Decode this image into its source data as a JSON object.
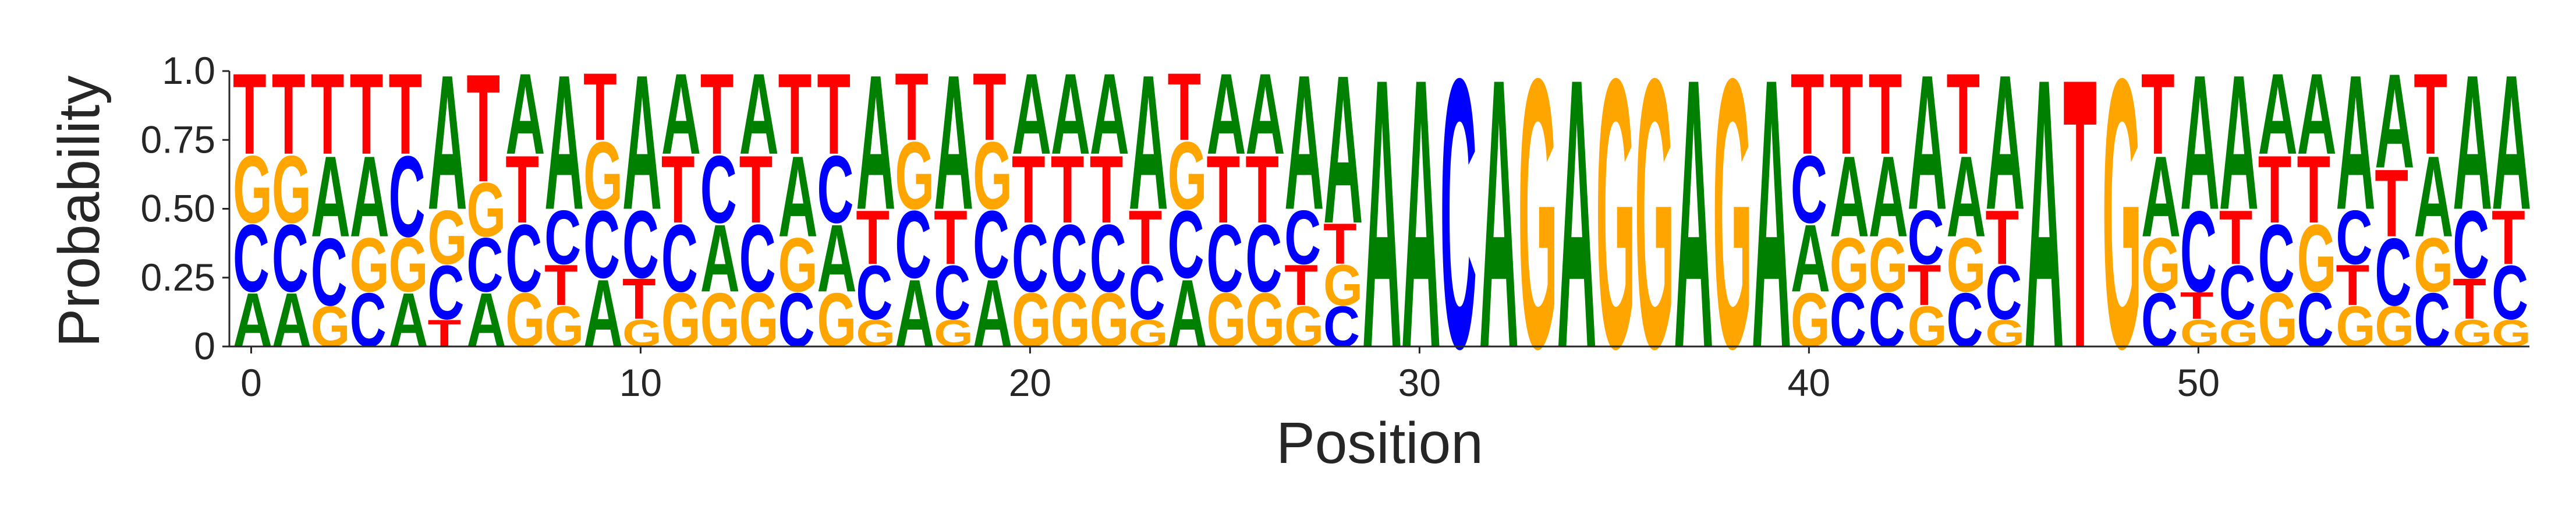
{
  "chart_data": {
    "type": "sequence-logo",
    "xlabel": "Position",
    "ylabel": "Probability",
    "ylim": [
      0,
      1
    ],
    "x_ticks": [
      "0",
      "10",
      "20",
      "30",
      "40",
      "50"
    ],
    "x_tick_values": [
      0,
      10,
      20,
      30,
      40,
      50
    ],
    "y_ticks": [
      "0",
      "0.25",
      "0.50",
      "0.75",
      "1.0"
    ],
    "y_tick_values": [
      0,
      0.25,
      0.5,
      0.75,
      1.0
    ],
    "colors": {
      "A": "#008000",
      "C": "#0000ff",
      "G": "#ffa500",
      "T": "#ff0000"
    },
    "positions": [
      {
        "A": 0.2,
        "C": 0.25,
        "G": 0.25,
        "T": 0.3
      },
      {
        "A": 0.2,
        "C": 0.25,
        "G": 0.25,
        "T": 0.3
      },
      {
        "A": 0.3,
        "C": 0.25,
        "G": 0.15,
        "T": 0.3
      },
      {
        "A": 0.3,
        "C": 0.2,
        "G": 0.2,
        "T": 0.3
      },
      {
        "A": 0.2,
        "C": 0.3,
        "G": 0.2,
        "T": 0.3
      },
      {
        "A": 0.5,
        "C": 0.2,
        "G": 0.2,
        "T": 0.1
      },
      {
        "A": 0.2,
        "C": 0.2,
        "G": 0.2,
        "T": 0.4
      },
      {
        "A": 0.3,
        "C": 0.25,
        "G": 0.2,
        "T": 0.25
      },
      {
        "A": 0.5,
        "C": 0.2,
        "G": 0.15,
        "T": 0.15
      },
      {
        "A": 0.25,
        "C": 0.25,
        "G": 0.25,
        "T": 0.25
      },
      {
        "A": 0.5,
        "C": 0.25,
        "G": 0.1,
        "T": 0.15
      },
      {
        "A": 0.3,
        "C": 0.25,
        "G": 0.2,
        "T": 0.25
      },
      {
        "A": 0.25,
        "C": 0.25,
        "G": 0.2,
        "T": 0.3
      },
      {
        "A": 0.3,
        "C": 0.25,
        "G": 0.2,
        "T": 0.25
      },
      {
        "A": 0.3,
        "C": 0.2,
        "G": 0.2,
        "T": 0.3
      },
      {
        "A": 0.25,
        "C": 0.25,
        "G": 0.2,
        "T": 0.3
      },
      {
        "A": 0.5,
        "C": 0.2,
        "G": 0.1,
        "T": 0.2
      },
      {
        "A": 0.25,
        "C": 0.25,
        "G": 0.25,
        "T": 0.25
      },
      {
        "A": 0.5,
        "C": 0.2,
        "G": 0.1,
        "T": 0.2
      },
      {
        "A": 0.25,
        "C": 0.25,
        "G": 0.25,
        "T": 0.25
      },
      {
        "A": 0.3,
        "C": 0.25,
        "G": 0.2,
        "T": 0.25
      },
      {
        "A": 0.3,
        "C": 0.25,
        "G": 0.2,
        "T": 0.25
      },
      {
        "A": 0.3,
        "C": 0.25,
        "G": 0.2,
        "T": 0.25
      },
      {
        "A": 0.5,
        "C": 0.2,
        "G": 0.1,
        "T": 0.2
      },
      {
        "A": 0.25,
        "C": 0.25,
        "G": 0.25,
        "T": 0.25
      },
      {
        "A": 0.3,
        "C": 0.25,
        "G": 0.2,
        "T": 0.25
      },
      {
        "A": 0.3,
        "C": 0.25,
        "G": 0.2,
        "T": 0.25
      },
      {
        "A": 0.5,
        "C": 0.2,
        "G": 0.15,
        "T": 0.15
      },
      {
        "A": 0.55,
        "C": 0.15,
        "G": 0.15,
        "T": 0.15
      },
      {
        "A": 1.0,
        "C": 0,
        "G": 0,
        "T": 0
      },
      {
        "A": 1.0,
        "C": 0,
        "G": 0,
        "T": 0
      },
      {
        "A": 0,
        "C": 1.0,
        "G": 0,
        "T": 0
      },
      {
        "A": 1.0,
        "C": 0,
        "G": 0,
        "T": 0
      },
      {
        "A": 0,
        "C": 0,
        "G": 1.0,
        "T": 0
      },
      {
        "A": 1.0,
        "C": 0,
        "G": 0,
        "T": 0
      },
      {
        "A": 0,
        "C": 0,
        "G": 1.0,
        "T": 0
      },
      {
        "A": 0,
        "C": 0,
        "G": 1.0,
        "T": 0
      },
      {
        "A": 1.0,
        "C": 0,
        "G": 0,
        "T": 0
      },
      {
        "A": 0,
        "C": 0,
        "G": 1.0,
        "T": 0
      },
      {
        "A": 1.0,
        "C": 0,
        "G": 0,
        "T": 0
      },
      {
        "A": 0.25,
        "C": 0.25,
        "G": 0.2,
        "T": 0.3
      },
      {
        "A": 0.3,
        "C": 0.2,
        "G": 0.2,
        "T": 0.3
      },
      {
        "A": 0.3,
        "C": 0.2,
        "G": 0.2,
        "T": 0.3
      },
      {
        "A": 0.5,
        "C": 0.2,
        "G": 0.15,
        "T": 0.15
      },
      {
        "A": 0.3,
        "C": 0.2,
        "G": 0.2,
        "T": 0.3
      },
      {
        "A": 0.5,
        "C": 0.2,
        "G": 0.1,
        "T": 0.2
      },
      {
        "A": 1.0,
        "C": 0,
        "G": 0,
        "T": 0
      },
      {
        "A": 0,
        "C": 0,
        "G": 0,
        "T": 1.0
      },
      {
        "A": 0,
        "C": 0,
        "G": 1.0,
        "T": 0
      },
      {
        "A": 0.3,
        "C": 0.2,
        "G": 0.2,
        "T": 0.3
      },
      {
        "A": 0.5,
        "C": 0.3,
        "G": 0.1,
        "T": 0.1
      },
      {
        "A": 0.5,
        "C": 0.2,
        "G": 0.1,
        "T": 0.2
      },
      {
        "A": 0.3,
        "C": 0.25,
        "G": 0.2,
        "T": 0.25
      },
      {
        "A": 0.3,
        "C": 0.2,
        "G": 0.25,
        "T": 0.25
      },
      {
        "A": 0.5,
        "C": 0.2,
        "G": 0.15,
        "T": 0.15
      },
      {
        "A": 0.35,
        "C": 0.25,
        "G": 0.15,
        "T": 0.25
      },
      {
        "A": 0.3,
        "C": 0.2,
        "G": 0.2,
        "T": 0.3
      },
      {
        "A": 0.5,
        "C": 0.25,
        "G": 0.1,
        "T": 0.15
      },
      {
        "A": 0.5,
        "C": 0.2,
        "G": 0.1,
        "T": 0.2
      }
    ]
  }
}
